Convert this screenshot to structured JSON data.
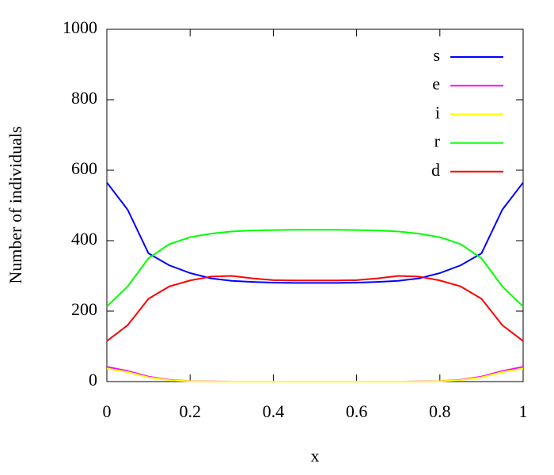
{
  "chart_data": {
    "type": "line",
    "x_label": "x",
    "y_label": "Number of individuals",
    "x": [
      0,
      0.05,
      0.1,
      0.15,
      0.2,
      0.25,
      0.3,
      0.35,
      0.4,
      0.45,
      0.5,
      0.55,
      0.6,
      0.65,
      0.7,
      0.75,
      0.8,
      0.85,
      0.9,
      0.95,
      1
    ],
    "series": [
      {
        "name": "s",
        "color": "#0000ff",
        "values": [
          565,
          488,
          364,
          330,
          308,
          293,
          286,
          283,
          281,
          280,
          280,
          280,
          281,
          283,
          286,
          293,
          308,
          330,
          364,
          488,
          565
        ]
      },
      {
        "name": "e",
        "color": "#ff00ff",
        "values": [
          42,
          30,
          14,
          5,
          1.5,
          0.5,
          0,
          0,
          0,
          0,
          0,
          0,
          0,
          0,
          0,
          0.5,
          1.5,
          5,
          14,
          30,
          42
        ]
      },
      {
        "name": "i",
        "color": "#ffff00",
        "values": [
          37,
          27,
          12,
          4,
          1,
          0.3,
          0,
          0,
          0,
          0,
          0,
          0,
          0,
          0,
          0,
          0.3,
          1,
          4,
          12,
          27,
          37
        ]
      },
      {
        "name": "r",
        "color": "#00ff00",
        "values": [
          213,
          270,
          350,
          390,
          410,
          420,
          426,
          429,
          430,
          431,
          431,
          431,
          430,
          429,
          426,
          420,
          410,
          390,
          350,
          270,
          213
        ]
      },
      {
        "name": "d",
        "color": "#ff0000",
        "values": [
          115,
          160,
          235,
          270,
          287,
          298,
          300,
          293,
          288,
          287,
          287,
          287,
          288,
          293,
          300,
          298,
          287,
          270,
          235,
          160,
          115
        ]
      }
    ],
    "xlim": [
      0,
      1
    ],
    "ylim": [
      0,
      1000
    ],
    "xticks": [
      0,
      0.2,
      0.4,
      0.6,
      0.8,
      1
    ],
    "yticks": [
      0,
      200,
      400,
      600,
      800,
      1000
    ],
    "legend": "top-right",
    "grid": false
  }
}
